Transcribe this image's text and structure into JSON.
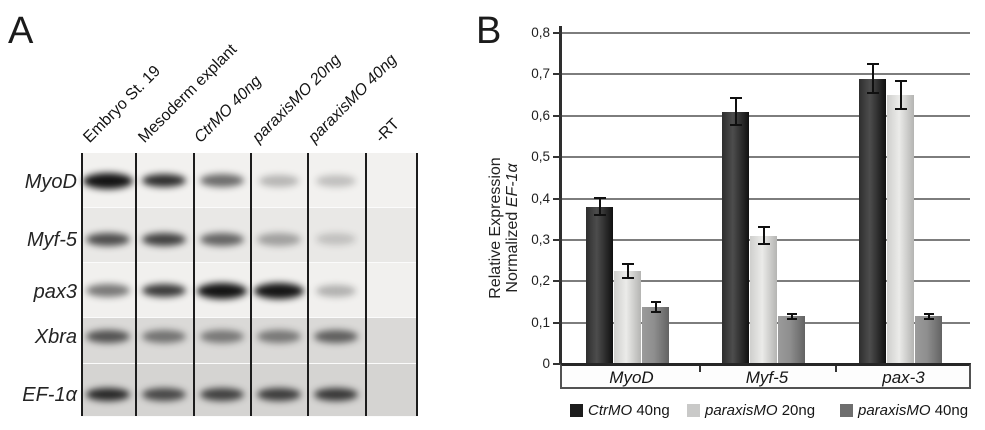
{
  "panelA": {
    "label": "A",
    "column_labels": [
      {
        "text": "Embryo St. 19",
        "italic": false
      },
      {
        "text": "Mesoderm explant",
        "italic": false
      },
      {
        "text": "CtrMO 40ng",
        "italic": true
      },
      {
        "text": "paraxisMO 20ng",
        "italic": true
      },
      {
        "text": "paraxisMO 40ng",
        "italic": true
      },
      {
        "text": "-RT",
        "italic": false
      }
    ],
    "gel": {
      "rows": [
        {
          "label": "MyoD",
          "bg": "#f2f1ef",
          "band_center": 0.51,
          "band_intensities": [
            0.97,
            0.85,
            0.58,
            0.26,
            0.22,
            0
          ]
        },
        {
          "label": "Myf-5",
          "bg": "#e9e8e6",
          "band_center": 0.58,
          "band_intensities": [
            0.7,
            0.76,
            0.6,
            0.33,
            0.18,
            0
          ]
        },
        {
          "label": "pax3",
          "bg": "#f1f0ee",
          "band_center": 0.51,
          "band_intensities": [
            0.52,
            0.8,
            0.97,
            0.96,
            0.28,
            0
          ]
        },
        {
          "label": "Xbra",
          "bg": "#dad9d7",
          "band_center": 0.42,
          "band_intensities": [
            0.66,
            0.5,
            0.48,
            0.48,
            0.6,
            0
          ]
        },
        {
          "label": "EF-1α",
          "bg": "#d5d4d2",
          "band_center": 0.58,
          "band_intensities": [
            0.86,
            0.7,
            0.74,
            0.76,
            0.78,
            0
          ]
        }
      ]
    }
  },
  "panelB": {
    "label": "B",
    "y_axis": {
      "title_line1": "Relative Expression",
      "title_line2_prefix": "Normalized ",
      "title_line2_gene": "EF-1α",
      "tick_labels": [
        "0,8",
        "0,7",
        "0,6",
        "0,5",
        "0,4",
        "0,3",
        "0,2",
        "0,1",
        "0"
      ]
    },
    "legend": [
      {
        "name": "CtrMO",
        "dose": "40ng",
        "color": "#1d1d1d"
      },
      {
        "name": "paraxisMO",
        "dose": "20ng",
        "color": "#c9c9c8"
      },
      {
        "name": "paraxisMO",
        "dose": "40ng",
        "color": "#6e6e6e"
      }
    ]
  },
  "chart_data": {
    "type": "bar",
    "title": "",
    "categories": [
      "MyoD",
      "Myf-5",
      "pax-3"
    ],
    "series": [
      {
        "name": "CtrMO 40ng",
        "values": [
          0.38,
          0.61,
          0.69
        ],
        "errors": [
          0.021,
          0.033,
          0.034
        ]
      },
      {
        "name": "paraxisMO 20ng",
        "values": [
          0.225,
          0.31,
          0.65
        ],
        "errors": [
          0.016,
          0.02,
          0.034
        ]
      },
      {
        "name": "paraxisMO 40ng",
        "values": [
          0.138,
          0.115,
          0.115
        ],
        "errors": [
          0.012,
          0.006,
          0.006
        ]
      }
    ],
    "xlabel": "",
    "ylabel": "Relative Expression Normalized EF-1α",
    "ylim": [
      0,
      0.8
    ],
    "ytick_step": 0.1,
    "decimal_separator": ",",
    "grid": true,
    "legend_position": "bottom",
    "error_bars": true
  }
}
